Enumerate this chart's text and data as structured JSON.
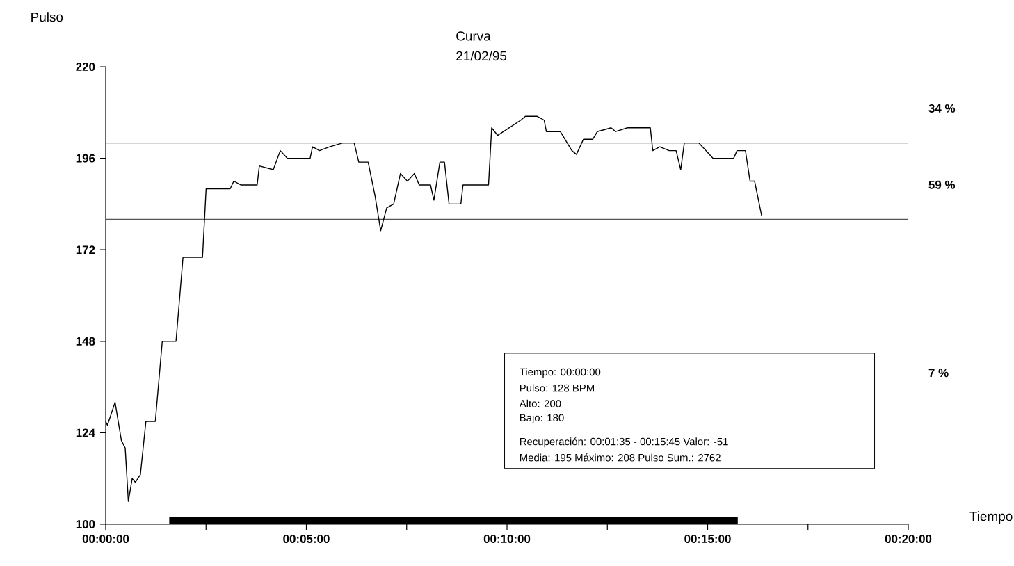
{
  "chart_data": {
    "type": "line",
    "title": "Curva",
    "subtitle": "21/02/95",
    "xlabel": "Tiempo",
    "ylabel": "Pulso",
    "x": [
      0,
      0.0007,
      0.0039,
      0.0065,
      0.0081,
      0.0094,
      0.011,
      0.0123,
      0.0144,
      0.0167,
      0.0206,
      0.0235,
      0.0292,
      0.0321,
      0.0402,
      0.0417,
      0.0517,
      0.0532,
      0.0561,
      0.0629,
      0.0638,
      0.0696,
      0.0725,
      0.0754,
      0.0849,
      0.0859,
      0.0888,
      0.093,
      0.0984,
      0.1032,
      0.1051,
      0.109,
      0.1119,
      0.1142,
      0.1167,
      0.1196,
      0.1224,
      0.1253,
      0.1282,
      0.1302,
      0.1349,
      0.1363,
      0.1388,
      0.1407,
      0.1426,
      0.1475,
      0.1484,
      0.159,
      0.1603,
      0.1628,
      0.1676,
      0.1724,
      0.1743,
      0.1792,
      0.1821,
      0.183,
      0.1888,
      0.1936,
      0.1955,
      0.1984,
      0.2023,
      0.2042,
      0.2099,
      0.2118,
      0.2167,
      0.2195,
      0.2262,
      0.2272,
      0.2301,
      0.234,
      0.2369,
      0.2388,
      0.2403,
      0.2464,
      0.2522,
      0.2608,
      0.2622,
      0.2657,
      0.2676,
      0.2695,
      0.2724
    ],
    "series": [
      {
        "color": "#000000",
        "values": [
          127,
          126,
          132,
          122,
          120,
          106,
          112,
          111,
          113,
          127,
          127,
          148,
          148,
          170,
          170,
          188,
          188,
          190,
          189,
          189,
          194,
          193,
          198,
          196,
          196,
          199,
          198,
          199,
          200,
          200,
          195,
          195,
          186,
          177,
          183,
          184,
          192,
          190,
          192,
          189,
          189,
          185,
          195,
          195,
          184,
          184,
          189,
          189,
          204,
          202,
          204,
          206,
          207,
          207,
          206,
          203,
          203,
          198,
          197,
          201,
          201,
          203,
          204,
          203,
          204,
          204,
          204,
          198,
          199,
          198,
          198,
          193,
          200,
          200,
          196,
          196,
          198,
          198,
          190,
          190,
          181
        ]
      },
      {
        "type": "area",
        "color": "#000000",
        "x": [
          0.026389,
          0.2625
        ],
        "values": [
          102,
          102
        ]
      }
    ],
    "xlim": [
      0,
      0.333333
    ],
    "xticks": [
      {
        "value": 0,
        "label": "00:00:00"
      },
      {
        "value": 0.041667,
        "label": null
      },
      {
        "value": 0.083333,
        "label": "00:05:00"
      },
      {
        "value": 0.125,
        "label": null
      },
      {
        "value": 0.166667,
        "label": "00:10:00"
      },
      {
        "value": 0.208333,
        "label": null
      },
      {
        "value": 0.25,
        "label": "00:15:00"
      },
      {
        "value": 0.291667,
        "label": null
      },
      {
        "value": 0.333333,
        "label": "00:20:00"
      }
    ],
    "ylim": [
      100,
      220
    ],
    "yticks": [
      100,
      124,
      148,
      172,
      196,
      220
    ],
    "ref_lines": [
      {
        "axis": "y",
        "value": 200,
        "color": "#555555"
      },
      {
        "axis": "y",
        "value": 180,
        "color": "#555555"
      }
    ],
    "annotations": [
      "34 %",
      "59 %",
      "7 %",
      "Tiempo: 00:00:00",
      "Pulso: 128 BPM",
      "Alto: 200",
      "Bajo: 180",
      "Recuperación: 00:01:35 - 00:15:45 Valor: -51",
      "Media: 195 Máximo: 208 Pulso Sum.: 2762"
    ]
  }
}
